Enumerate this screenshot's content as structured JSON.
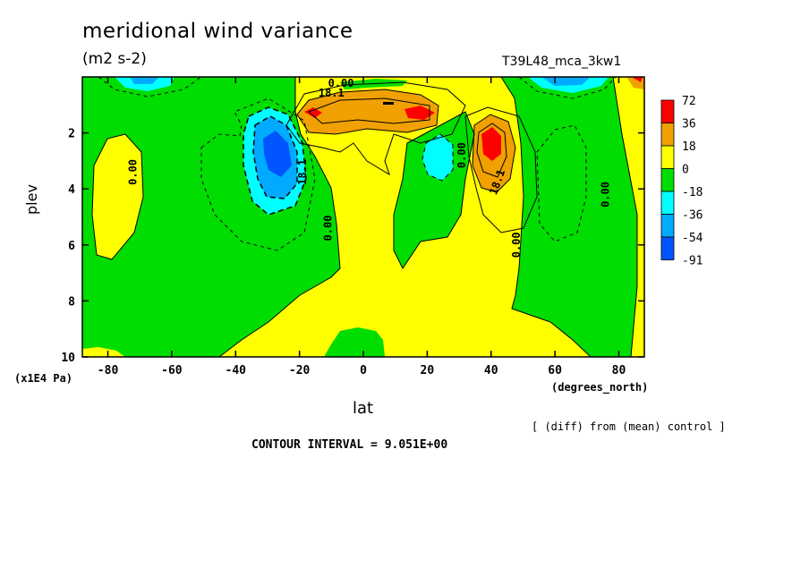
{
  "header": {
    "title": "meridional wind variance",
    "units": "(m2 s-2)",
    "run_label": "T39L48_mca_3kw1"
  },
  "footer": {
    "note": "[ (diff) from (mean) control ]",
    "contour_interval": "CONTOUR INTERVAL = 9.051E+00"
  },
  "chart_data": {
    "type": "heatmap",
    "title": "meridional wind variance",
    "subtitle": "(m2 s-2)",
    "xlabel": "lat",
    "x_unit": "(degrees_north)",
    "ylabel": "plev",
    "y_unit": "(x1E4 Pa)",
    "xlim": [
      -88,
      88
    ],
    "ylim": [
      10,
      0
    ],
    "x_ticks": [
      -80,
      -60,
      -40,
      -20,
      0,
      20,
      40,
      60,
      80
    ],
    "y_ticks": [
      2,
      4,
      6,
      8,
      10
    ],
    "x_tick_labels": [
      "-80",
      "-60",
      "-40",
      "-20",
      "0",
      "20",
      "40",
      "60",
      "80"
    ],
    "y_tick_labels": [
      "2",
      "4",
      "6",
      "8",
      "10"
    ],
    "contour_interval": 9.051,
    "legend": {
      "placement": "right",
      "levels": [
        "72",
        "36",
        "18",
        "0",
        "-18",
        "-36",
        "-54",
        "-91"
      ],
      "colors": [
        "#ff0000",
        "#f0a000",
        "#ffff00",
        "#00dd00",
        "#00ffff",
        "#00aaff",
        "#0055ff"
      ]
    },
    "contour_labels": [
      {
        "text": "0.00",
        "x": -71,
        "y": 3.4,
        "rot": -90
      },
      {
        "text": "18.1",
        "x": -18,
        "y": 3.4,
        "rot": -90
      },
      {
        "text": "0.00",
        "x": -10,
        "y": 5.4,
        "rot": -90
      },
      {
        "text": "0.00",
        "x": -7,
        "y": 0.35,
        "rot": 0
      },
      {
        "text": "18.1",
        "x": -10,
        "y": 0.7,
        "rot": 0
      },
      {
        "text": "0.00",
        "x": 32,
        "y": 2.8,
        "rot": -90
      },
      {
        "text": "18.1",
        "x": 43,
        "y": 3.8,
        "rot": -70
      },
      {
        "text": "0.00",
        "x": 49,
        "y": 6.0,
        "rot": -90
      },
      {
        "text": "0.00",
        "x": 77,
        "y": 4.2,
        "rot": -90
      }
    ]
  }
}
